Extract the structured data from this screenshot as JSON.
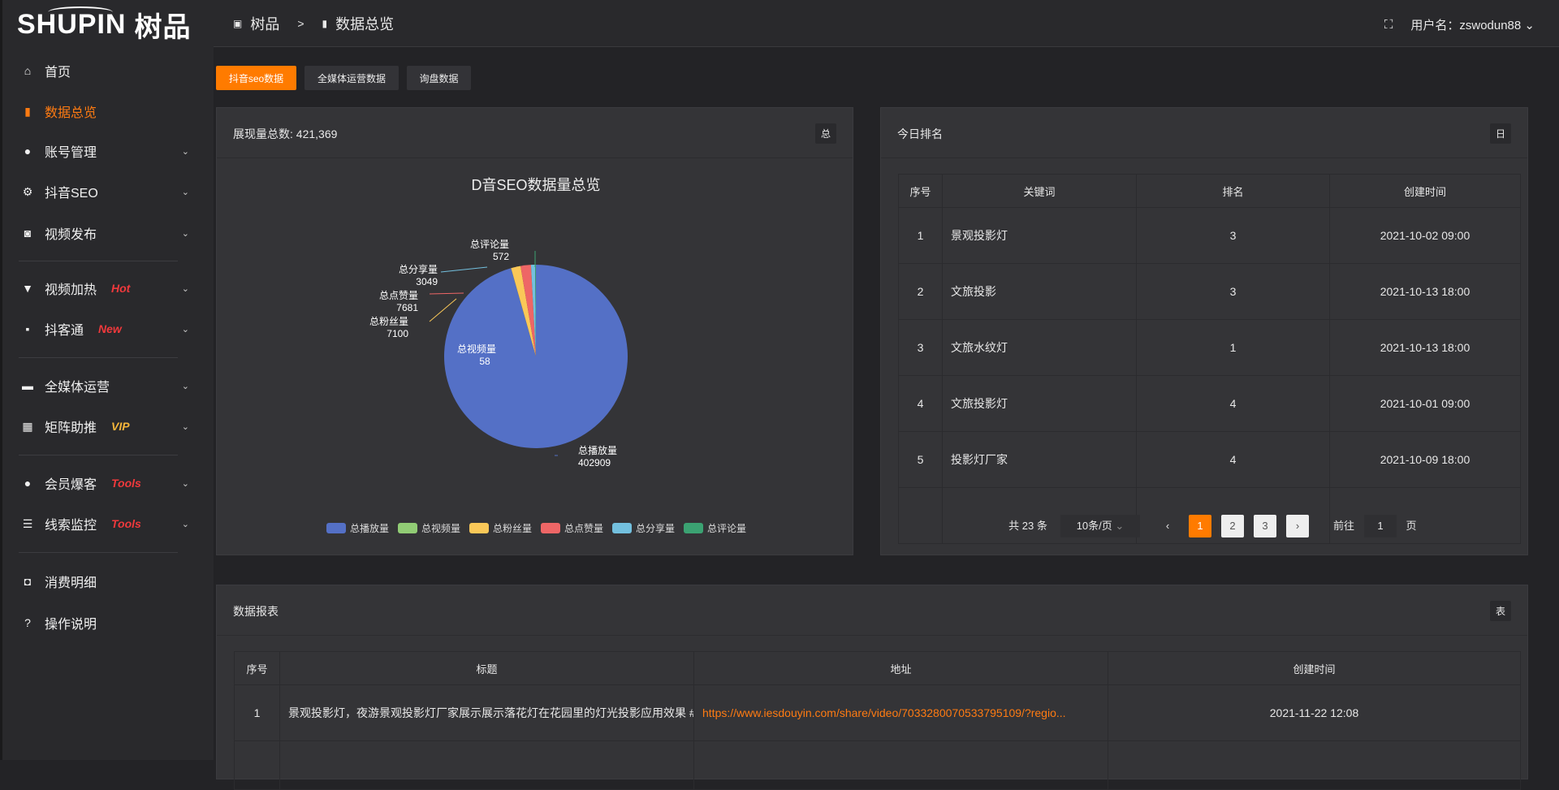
{
  "app": {
    "logo_text": "SHUPIN",
    "logo_cn": "树品"
  },
  "header": {
    "breadcrumb": [
      "树品",
      ">",
      "数据总览"
    ],
    "username_label": "用户名：",
    "username": "zswodun88"
  },
  "sidebar": {
    "items": [
      {
        "label": "首页",
        "icon": "home-icon"
      },
      {
        "label": "数据总览",
        "icon": "bar-chart-icon",
        "active": true
      },
      {
        "label": "账号管理",
        "icon": "user-icon"
      },
      {
        "label": "抖音SEO",
        "icon": "gear-icon"
      },
      {
        "label": "视频发布",
        "icon": "camera-icon"
      },
      {
        "label": "视频加热",
        "icon": "monitor-stand-icon",
        "badge": "Hot"
      },
      {
        "label": "抖客通",
        "icon": "chat-icon",
        "badge": "New"
      },
      {
        "label": "全媒体运营",
        "icon": "desktop-icon"
      },
      {
        "label": "矩阵助推",
        "icon": "grid-icon",
        "badge": "VIP"
      },
      {
        "label": "会员爆客",
        "icon": "user-icon",
        "badge": "Tools"
      },
      {
        "label": "线索监控",
        "icon": "sliders-icon",
        "badge": "Tools"
      },
      {
        "label": "消费明细",
        "icon": "wallet-icon"
      },
      {
        "label": "操作说明",
        "icon": "help-icon"
      }
    ],
    "badge_colors": {
      "Hot": "#f0393c",
      "New": "#f0393c",
      "VIP": "#f5b53a",
      "Tools": "#f0393c"
    }
  },
  "tabs": [
    "抖音seo数据",
    "全媒体运营数据",
    "询盘数据"
  ],
  "left_panel": {
    "title": "展现量总数: 421,369",
    "tag": "总"
  },
  "chart_data": {
    "type": "pie",
    "title": "D音SEO数据量总览",
    "legend_position": "bottom",
    "slices": [
      {
        "name": "总播放量",
        "value": 402909,
        "color": "#5470c6"
      },
      {
        "name": "总视频量",
        "value": 58,
        "color": "#91cc75"
      },
      {
        "name": "总粉丝量",
        "value": 7100,
        "color": "#fac858"
      },
      {
        "name": "总点赞量",
        "value": 7681,
        "color": "#ee6666"
      },
      {
        "name": "总分享量",
        "value": 3049,
        "color": "#73c0de"
      },
      {
        "name": "总评论量",
        "value": 572,
        "color": "#3ba272"
      }
    ]
  },
  "right_panel": {
    "title": "今日排名",
    "tag": "日",
    "columns": [
      "序号",
      "关键词",
      "排名",
      "创建时间"
    ],
    "rows": [
      [
        "1",
        "景观投影灯",
        "3",
        "2021-10-02 09:00"
      ],
      [
        "2",
        "文旅投影",
        "3",
        "2021-10-13 18:00"
      ],
      [
        "3",
        "文旅水纹灯",
        "1",
        "2021-10-13 18:00"
      ],
      [
        "4",
        "文旅投影灯",
        "4",
        "2021-10-01 09:00"
      ],
      [
        "5",
        "投影灯厂家",
        "4",
        "2021-10-09 18:00"
      ]
    ],
    "pagination": {
      "total": "共 23 条",
      "page_size": "10条/页",
      "pages": [
        "1",
        "2",
        "3"
      ],
      "current": "1",
      "goto_label": "前往",
      "goto_value": "1",
      "goto_suffix": "页"
    }
  },
  "bottom_panel": {
    "title": "数据报表",
    "tag": "表",
    "columns": [
      "序号",
      "标题",
      "地址",
      "创建时间"
    ],
    "rows": [
      [
        "1",
        "景观投影灯，夜游景观投影灯厂家展示展示落花灯在花园里的灯光投影应用效果 #",
        "https://www.iesdouyin.com/share/video/7033280070533795109/?regio...",
        "2021-11-22 12:08"
      ]
    ]
  },
  "accent": "#ff7b00"
}
